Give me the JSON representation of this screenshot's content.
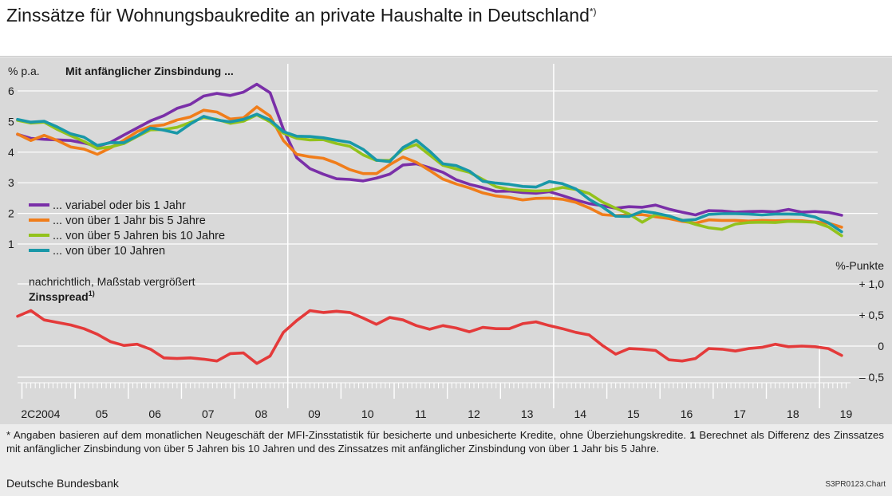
{
  "title": "Zinssätze für Wohnungsbaukredite an private Haushalte in Deutschland",
  "title_marker": "*)",
  "footnote": {
    "star": "*",
    "text1": " Angaben basieren auf dem monatlichen Neugeschäft der MFI-Zinsstatistik für besicherte und unbesicherte Kredite, ohne Überziehungskredite. ",
    "num": "1",
    "text2": " Berechnet als Differenz des Zinssatzes mit anfänglicher Zinsbindung von über 5 Jahren bis 10 Jahren und des Zinssatzes mit anfänglicher Zinsbindung von über 1 Jahr bis 5 Jahre."
  },
  "source": "Deutsche Bundesbank",
  "chart_id": "S3PR0123.Chart",
  "chart_data": [
    {
      "type": "line",
      "ylabel": "% p.a.",
      "subtitle": "Mit anfänglicher Zinsbindung ...",
      "ylim": [
        1,
        6
      ],
      "yticks": [
        1,
        2,
        3,
        4,
        5,
        6
      ],
      "xlim": [
        2003.917,
        2019.583
      ],
      "x_start": 2003.917,
      "x_step": 0.25,
      "x_tick_labels": [
        "2C2004",
        "05",
        "06",
        "07",
        "08",
        "09",
        "10",
        "11",
        "12",
        "13",
        "14",
        "15",
        "16",
        "17",
        "18",
        "19"
      ],
      "grid": true,
      "legend_position": "lower-left",
      "series": [
        {
          "name": "... variabel oder bis 1 Jahr",
          "color": "#7a2fa8",
          "values": [
            4.58,
            4.45,
            4.42,
            4.4,
            4.38,
            4.3,
            4.19,
            4.32,
            4.56,
            4.79,
            5.02,
            5.19,
            5.43,
            5.56,
            5.83,
            5.92,
            5.85,
            5.96,
            6.22,
            5.94,
            4.75,
            3.82,
            3.46,
            3.28,
            3.13,
            3.11,
            3.06,
            3.15,
            3.28,
            3.58,
            3.62,
            3.49,
            3.34,
            3.1,
            2.95,
            2.84,
            2.72,
            2.73,
            2.68,
            2.66,
            2.71,
            2.58,
            2.44,
            2.32,
            2.25,
            2.17,
            2.22,
            2.2,
            2.27,
            2.14,
            2.04,
            1.95,
            2.09,
            2.08,
            2.04,
            2.06,
            2.07,
            2.05,
            2.13,
            2.04,
            2.06,
            2.03,
            1.94
          ]
        },
        {
          "name": "... von über 1 Jahr bis 5 Jahre",
          "color": "#f07d1a",
          "values": [
            4.59,
            4.38,
            4.55,
            4.38,
            4.17,
            4.1,
            3.93,
            4.14,
            4.39,
            4.67,
            4.84,
            4.89,
            5.05,
            5.15,
            5.37,
            5.31,
            5.08,
            5.12,
            5.48,
            5.18,
            4.38,
            3.93,
            3.85,
            3.8,
            3.64,
            3.43,
            3.3,
            3.3,
            3.59,
            3.84,
            3.67,
            3.4,
            3.12,
            2.96,
            2.83,
            2.67,
            2.57,
            2.52,
            2.44,
            2.49,
            2.5,
            2.46,
            2.36,
            2.18,
            1.96,
            1.93,
            1.95,
            1.96,
            1.89,
            1.83,
            1.74,
            1.68,
            1.79,
            1.77,
            1.77,
            1.75,
            1.77,
            1.76,
            1.77,
            1.76,
            1.72,
            1.68,
            1.55
          ]
        },
        {
          "name": "... von über 5 Jahren bis 10 Jahre",
          "color": "#93c21c",
          "values": [
            5.04,
            4.95,
            4.98,
            4.74,
            4.54,
            4.35,
            4.12,
            4.17,
            4.28,
            4.51,
            4.73,
            4.74,
            4.81,
            4.97,
            5.13,
            5.07,
            4.94,
            5.01,
            5.22,
            4.99,
            4.62,
            4.45,
            4.4,
            4.41,
            4.28,
            4.19,
            3.91,
            3.73,
            3.73,
            4.09,
            4.25,
            3.91,
            3.57,
            3.45,
            3.34,
            3.11,
            2.87,
            2.78,
            2.75,
            2.73,
            2.75,
            2.85,
            2.78,
            2.65,
            2.37,
            2.17,
            1.98,
            1.71,
            1.96,
            1.9,
            1.78,
            1.64,
            1.53,
            1.48,
            1.65,
            1.7,
            1.71,
            1.7,
            1.74,
            1.73,
            1.71,
            1.56,
            1.27
          ]
        },
        {
          "name": "... von über 10 Jahren",
          "color": "#1998a8",
          "values": [
            5.07,
            4.98,
            5.01,
            4.82,
            4.6,
            4.49,
            4.22,
            4.31,
            4.31,
            4.53,
            4.79,
            4.72,
            4.62,
            4.92,
            5.17,
            5.05,
            4.99,
            5.07,
            5.24,
            5.05,
            4.67,
            4.52,
            4.51,
            4.47,
            4.39,
            4.32,
            4.09,
            3.74,
            3.69,
            4.15,
            4.39,
            4.03,
            3.62,
            3.56,
            3.38,
            3.05,
            2.99,
            2.95,
            2.88,
            2.86,
            3.04,
            2.97,
            2.8,
            2.46,
            2.21,
            1.91,
            1.9,
            2.07,
            2.01,
            1.92,
            1.77,
            1.8,
            1.97,
            1.99,
            1.99,
            1.98,
            1.95,
            1.98,
            1.98,
            1.97,
            1.88,
            1.69,
            1.4
          ]
        }
      ]
    },
    {
      "type": "line",
      "title": "Zinsspread",
      "title_marker": "1)",
      "subtitle": "nachrichtlich, Maßstab vergrößert",
      "ylabel": "%-Punkte",
      "ylim": [
        -0.5,
        1.0
      ],
      "yticks": [
        -0.5,
        0,
        0.5,
        1.0
      ],
      "ytick_labels": [
        "– 0,5",
        "0",
        "+ 0,5",
        "+ 1,0"
      ],
      "xlim": [
        2003.917,
        2019.583
      ],
      "x_start": 2003.917,
      "x_step": 0.25,
      "grid": true,
      "series": [
        {
          "color": "#e43a3a",
          "values": [
            0.48,
            0.57,
            0.42,
            0.38,
            0.34,
            0.28,
            0.19,
            0.07,
            0.01,
            0.03,
            -0.05,
            -0.19,
            -0.2,
            -0.19,
            -0.21,
            -0.24,
            -0.12,
            -0.11,
            -0.28,
            -0.16,
            0.22,
            0.41,
            0.57,
            0.54,
            0.56,
            0.54,
            0.45,
            0.35,
            0.46,
            0.42,
            0.33,
            0.27,
            0.33,
            0.29,
            0.23,
            0.3,
            0.28,
            0.28,
            0.36,
            0.39,
            0.33,
            0.28,
            0.22,
            0.18,
            0.01,
            -0.13,
            -0.04,
            -0.05,
            -0.07,
            -0.22,
            -0.24,
            -0.2,
            -0.04,
            -0.05,
            -0.08,
            -0.04,
            -0.02,
            0.03,
            -0.01,
            0.0,
            -0.01,
            -0.04,
            -0.15
          ]
        }
      ]
    }
  ]
}
